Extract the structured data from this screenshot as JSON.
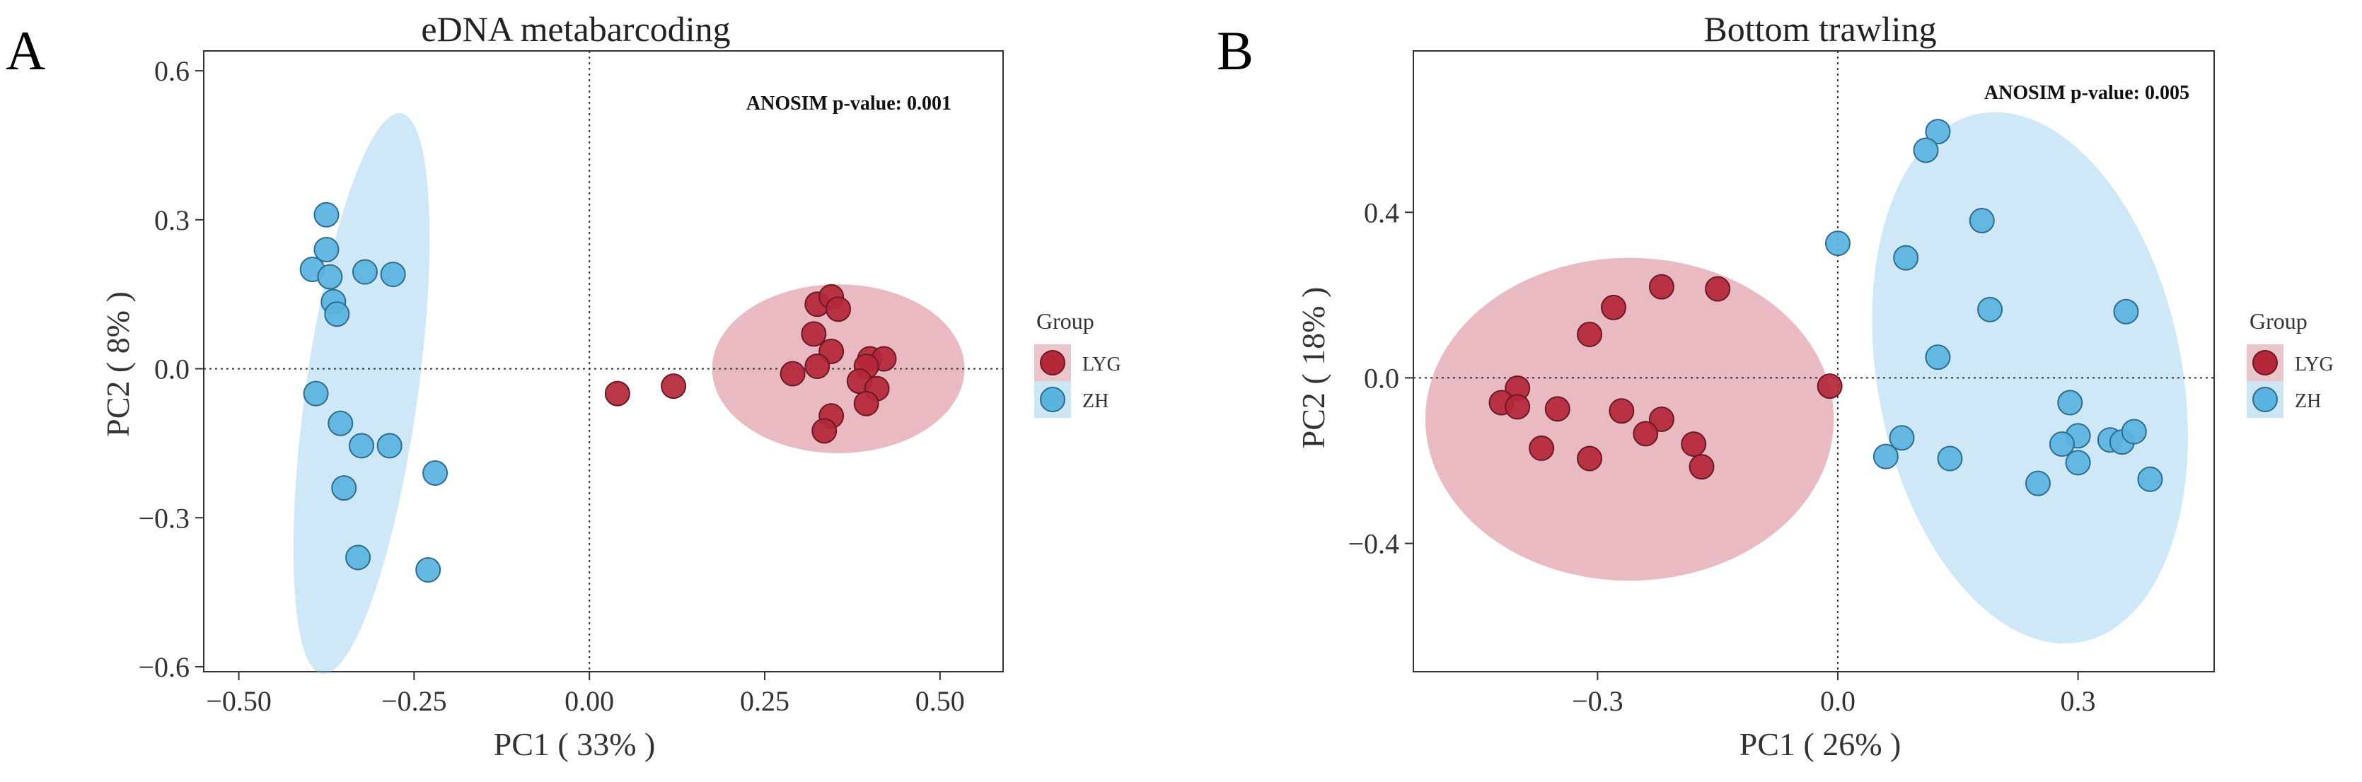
{
  "chart_data": [
    {
      "panel_label": "A",
      "type": "scatter",
      "title": "eDNA metabarcoding",
      "xlabel": "PC1 ( 33% )",
      "ylabel": "PC2 ( 8% )",
      "xlim": [
        -0.55,
        0.59
      ],
      "ylim": [
        -0.61,
        0.64
      ],
      "xticks": [
        -0.5,
        -0.25,
        0.0,
        0.25,
        0.5
      ],
      "xtick_labels": [
        "−0.50",
        "−0.25",
        "0.00",
        "0.25",
        "0.50"
      ],
      "yticks": [
        -0.6,
        -0.3,
        0.0,
        0.3,
        0.6
      ],
      "ytick_labels": [
        "−0.6",
        "−0.3",
        "0.0",
        "0.3",
        "0.6"
      ],
      "annotation": "ANOSIM p-value: 0.001",
      "reference_lines": {
        "x": 0,
        "y": 0
      },
      "legend": {
        "title": "Group",
        "position": "right",
        "entries": [
          "LYG",
          "ZH"
        ]
      },
      "ellipses": [
        {
          "group": "LYG",
          "center": [
            0.355,
            0.0
          ],
          "rx": 0.18,
          "ry": 0.17,
          "rotation_deg": 0
        },
        {
          "group": "ZH",
          "center": [
            -0.325,
            -0.05
          ],
          "rx": 0.08,
          "ry": 0.57,
          "rotation_deg": 8
        }
      ],
      "series": [
        {
          "name": "LYG",
          "color": "#b5283a",
          "points": [
            [
              0.04,
              -0.05
            ],
            [
              0.12,
              -0.035
            ],
            [
              0.29,
              -0.01
            ],
            [
              0.325,
              0.13
            ],
            [
              0.345,
              0.145
            ],
            [
              0.355,
              0.12
            ],
            [
              0.32,
              0.07
            ],
            [
              0.345,
              0.035
            ],
            [
              0.325,
              0.005
            ],
            [
              0.4,
              0.02
            ],
            [
              0.42,
              0.02
            ],
            [
              0.395,
              0.005
            ],
            [
              0.385,
              -0.025
            ],
            [
              0.41,
              -0.04
            ],
            [
              0.395,
              -0.07
            ],
            [
              0.345,
              -0.095
            ],
            [
              0.335,
              -0.125
            ]
          ]
        },
        {
          "name": "ZH",
          "color": "#5ab4e0",
          "points": [
            [
              -0.375,
              0.31
            ],
            [
              -0.375,
              0.24
            ],
            [
              -0.395,
              0.2
            ],
            [
              -0.37,
              0.185
            ],
            [
              -0.32,
              0.195
            ],
            [
              -0.28,
              0.19
            ],
            [
              -0.365,
              0.135
            ],
            [
              -0.36,
              0.11
            ],
            [
              -0.39,
              -0.05
            ],
            [
              -0.355,
              -0.11
            ],
            [
              -0.325,
              -0.155
            ],
            [
              -0.285,
              -0.155
            ],
            [
              -0.35,
              -0.24
            ],
            [
              -0.22,
              -0.21
            ],
            [
              -0.33,
              -0.38
            ],
            [
              -0.23,
              -0.405
            ]
          ]
        }
      ]
    },
    {
      "panel_label": "B",
      "type": "scatter",
      "title": "Bottom trawling",
      "xlabel": "PC1 ( 26% )",
      "ylabel": "PC2 ( 18% )",
      "xlim": [
        -0.53,
        0.47
      ],
      "ylim": [
        -0.71,
        0.79
      ],
      "xticks": [
        -0.3,
        0.0,
        0.3
      ],
      "xtick_labels": [
        "−0.3",
        "0.0",
        "0.3"
      ],
      "yticks": [
        -0.4,
        0.0,
        0.4
      ],
      "ytick_labels": [
        "−0.4",
        "0.0",
        "0.4"
      ],
      "annotation": "ANOSIM p-value: 0.005",
      "reference_lines": {
        "x": 0,
        "y": 0
      },
      "legend": {
        "title": "Group",
        "position": "right",
        "entries": [
          "LYG",
          "ZH"
        ]
      },
      "ellipses": [
        {
          "group": "LYG",
          "center": [
            -0.26,
            -0.1
          ],
          "rx": 0.255,
          "ry": 0.39,
          "rotation_deg": 0
        },
        {
          "group": "ZH",
          "center": [
            0.24,
            0.0
          ],
          "rx": 0.19,
          "ry": 0.65,
          "rotation_deg": -11
        }
      ],
      "series": [
        {
          "name": "LYG",
          "color": "#b5283a",
          "points": [
            [
              -0.01,
              -0.02
            ],
            [
              -0.15,
              0.215
            ],
            [
              -0.22,
              0.22
            ],
            [
              -0.28,
              0.17
            ],
            [
              -0.31,
              0.105
            ],
            [
              -0.4,
              -0.025
            ],
            [
              -0.42,
              -0.06
            ],
            [
              -0.4,
              -0.07
            ],
            [
              -0.35,
              -0.075
            ],
            [
              -0.27,
              -0.08
            ],
            [
              -0.22,
              -0.1
            ],
            [
              -0.24,
              -0.135
            ],
            [
              -0.18,
              -0.16
            ],
            [
              -0.17,
              -0.215
            ],
            [
              -0.37,
              -0.17
            ],
            [
              -0.31,
              -0.195
            ]
          ]
        },
        {
          "name": "ZH",
          "color": "#5ab4e0",
          "points": [
            [
              0.125,
              0.595
            ],
            [
              0.11,
              0.55
            ],
            [
              0.0,
              0.325
            ],
            [
              0.18,
              0.38
            ],
            [
              0.085,
              0.29
            ],
            [
              0.19,
              0.165
            ],
            [
              0.36,
              0.16
            ],
            [
              0.125,
              0.05
            ],
            [
              0.29,
              -0.06
            ],
            [
              0.3,
              -0.14
            ],
            [
              0.28,
              -0.16
            ],
            [
              0.3,
              -0.205
            ],
            [
              0.34,
              -0.15
            ],
            [
              0.355,
              -0.155
            ],
            [
              0.37,
              -0.13
            ],
            [
              0.39,
              -0.245
            ],
            [
              0.25,
              -0.255
            ],
            [
              0.14,
              -0.195
            ],
            [
              0.08,
              -0.145
            ],
            [
              0.06,
              -0.19
            ]
          ]
        }
      ]
    }
  ]
}
